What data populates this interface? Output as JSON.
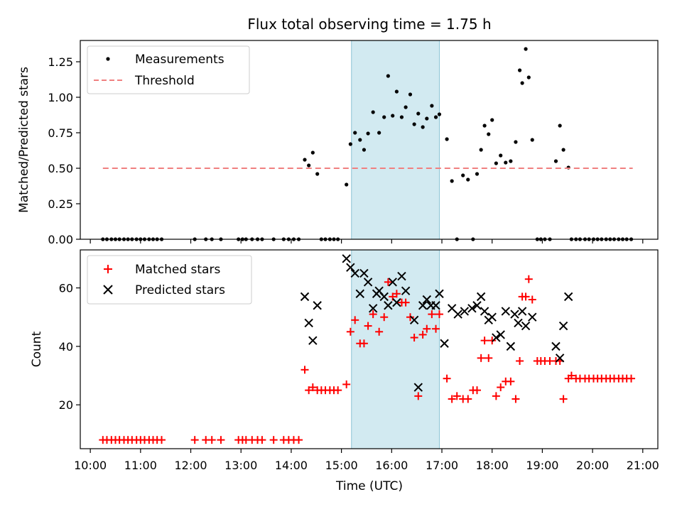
{
  "chart_data": [
    {
      "type": "scatter",
      "title": "Flux total observing time = 1.75 h",
      "xlabel": "",
      "ylabel": "Matched/Predicted stars",
      "xlim": [
        9.8,
        21.3
      ],
      "ylim": [
        0.0,
        1.4
      ],
      "yticks": [
        0.0,
        0.25,
        0.5,
        0.75,
        1.0,
        1.25
      ],
      "ytick_labels": [
        "0.00",
        "0.25",
        "0.50",
        "0.75",
        "1.00",
        "1.25"
      ],
      "highlight_span": [
        15.2,
        16.95
      ],
      "highlight_color": "#add8e6",
      "legend_position": "top-left",
      "series": [
        {
          "name": "Measurements",
          "marker": "dot",
          "color": "#000000",
          "x": [
            10.25,
            10.33,
            10.42,
            10.5,
            10.58,
            10.67,
            10.75,
            10.83,
            10.92,
            11.0,
            11.08,
            11.17,
            11.25,
            11.33,
            11.42,
            12.08,
            12.3,
            12.42,
            12.6,
            12.95,
            13.03,
            13.1,
            13.22,
            13.33,
            13.42,
            13.65,
            13.85,
            13.95,
            14.05,
            14.15,
            14.27,
            14.35,
            14.43,
            14.52,
            14.6,
            14.68,
            14.77,
            14.85,
            14.93,
            15.1,
            15.18,
            15.27,
            15.37,
            15.45,
            15.53,
            15.63,
            15.75,
            15.85,
            15.93,
            16.02,
            16.1,
            16.2,
            16.28,
            16.37,
            16.45,
            16.53,
            16.62,
            16.7,
            16.8,
            16.88,
            16.95,
            17.1,
            17.2,
            17.3,
            17.42,
            17.52,
            17.62,
            17.7,
            17.78,
            17.85,
            17.93,
            18.0,
            18.08,
            18.17,
            18.27,
            18.37,
            18.47,
            18.55,
            18.6,
            18.67,
            18.73,
            18.8,
            18.9,
            18.97,
            19.05,
            19.15,
            19.27,
            19.35,
            19.42,
            19.52,
            19.58,
            19.67,
            19.75,
            19.85,
            19.93,
            20.02,
            20.1,
            20.18,
            20.27,
            20.35,
            20.43,
            20.52,
            20.6,
            20.68,
            20.77
          ],
          "y": [
            0,
            0,
            0,
            0,
            0,
            0,
            0,
            0,
            0,
            0,
            0,
            0,
            0,
            0,
            0,
            0,
            0,
            0,
            0,
            0,
            0,
            0,
            0,
            0,
            0,
            0,
            0,
            0,
            0,
            0,
            0.56,
            0.52,
            0.61,
            0.46,
            0,
            0,
            0,
            0,
            0,
            0.385,
            0.67,
            0.75,
            0.7,
            0.63,
            0.745,
            0.895,
            0.75,
            0.86,
            1.15,
            0.87,
            1.04,
            0.86,
            0.93,
            1.02,
            0.81,
            0.885,
            0.79,
            0.85,
            0.94,
            0.86,
            0.88,
            0.705,
            0.41,
            0,
            0.45,
            0.42,
            0,
            0.46,
            0.63,
            0.8,
            0.74,
            0.84,
            0.535,
            0.59,
            0.54,
            0.55,
            0.685,
            1.19,
            1.1,
            1.34,
            1.14,
            0.7,
            0,
            0,
            0,
            0,
            0.55,
            0.8,
            0.63,
            0.505,
            0,
            0,
            0,
            0,
            0,
            0,
            0,
            0,
            0,
            0,
            0,
            0,
            0,
            0,
            0
          ]
        },
        {
          "name": "Threshold",
          "marker": "dashed-line",
          "color": "#f08080",
          "x": [
            10.25,
            20.8
          ],
          "y": [
            0.5,
            0.5
          ]
        }
      ]
    },
    {
      "type": "scatter",
      "title": "",
      "xlabel": "Time (UTC)",
      "ylabel": "Count",
      "xlim": [
        9.8,
        21.3
      ],
      "ylim": [
        5,
        73
      ],
      "yticks": [
        20,
        40,
        60
      ],
      "ytick_labels": [
        "20",
        "40",
        "60"
      ],
      "xticks": [
        10,
        11,
        12,
        13,
        14,
        15,
        16,
        17,
        18,
        19,
        20,
        21
      ],
      "xtick_labels": [
        "10:00",
        "11:00",
        "12:00",
        "13:00",
        "14:00",
        "15:00",
        "16:00",
        "17:00",
        "18:00",
        "19:00",
        "20:00",
        "21:00"
      ],
      "highlight_span": [
        15.2,
        16.95
      ],
      "highlight_color": "#add8e6",
      "legend_position": "top-left",
      "series": [
        {
          "name": "Matched stars",
          "marker": "plus",
          "color": "#ff0000",
          "x": [
            10.25,
            10.33,
            10.42,
            10.5,
            10.58,
            10.67,
            10.75,
            10.83,
            10.92,
            11.0,
            11.08,
            11.17,
            11.25,
            11.33,
            11.42,
            12.08,
            12.3,
            12.42,
            12.6,
            12.95,
            13.03,
            13.1,
            13.22,
            13.33,
            13.42,
            13.65,
            13.85,
            13.95,
            14.05,
            14.15,
            14.27,
            14.35,
            14.43,
            14.52,
            14.6,
            14.68,
            14.77,
            14.85,
            14.93,
            15.1,
            15.18,
            15.27,
            15.37,
            15.45,
            15.53,
            15.63,
            15.75,
            15.85,
            15.93,
            16.02,
            16.1,
            16.2,
            16.28,
            16.37,
            16.45,
            16.53,
            16.62,
            16.7,
            16.8,
            16.88,
            16.95,
            17.1,
            17.2,
            17.3,
            17.42,
            17.52,
            17.62,
            17.7,
            17.78,
            17.85,
            17.93,
            18.0,
            18.08,
            18.17,
            18.27,
            18.37,
            18.47,
            18.55,
            18.6,
            18.67,
            18.73,
            18.8,
            18.9,
            18.97,
            19.05,
            19.15,
            19.27,
            19.35,
            19.42,
            19.52,
            19.58,
            19.67,
            19.75,
            19.85,
            19.93,
            20.02,
            20.1,
            20.18,
            20.27,
            20.35,
            20.43,
            20.52,
            20.6,
            20.68,
            20.77
          ],
          "y": [
            8,
            8,
            8,
            8,
            8,
            8,
            8,
            8,
            8,
            8,
            8,
            8,
            8,
            8,
            8,
            8,
            8,
            8,
            8,
            8,
            8,
            8,
            8,
            8,
            8,
            8,
            8,
            8,
            8,
            8,
            32,
            25,
            26,
            25,
            25,
            25,
            25,
            25,
            25,
            27,
            45,
            49,
            41,
            41,
            47,
            51,
            45,
            50,
            62,
            57,
            58,
            55,
            55,
            50,
            43,
            23,
            44,
            46,
            51,
            46,
            51,
            29,
            22,
            23,
            22,
            22,
            25,
            25,
            36,
            42,
            36,
            42,
            23,
            26,
            28,
            28,
            22,
            35,
            57,
            57,
            63,
            56,
            35,
            35,
            35,
            35,
            35,
            35,
            22,
            29,
            30,
            29,
            29,
            29,
            29,
            29,
            29,
            29,
            29,
            29,
            29,
            29,
            29,
            29,
            29
          ]
        },
        {
          "name": "Predicted stars",
          "marker": "x",
          "color": "#000000",
          "x": [
            14.27,
            14.35,
            14.43,
            14.52,
            15.1,
            15.18,
            15.27,
            15.37,
            15.45,
            15.53,
            15.63,
            15.7,
            15.75,
            15.85,
            15.93,
            16.02,
            16.1,
            16.2,
            16.28,
            16.45,
            16.53,
            16.62,
            16.7,
            16.78,
            16.88,
            16.95,
            17.05,
            17.2,
            17.32,
            17.45,
            17.6,
            17.7,
            17.78,
            17.85,
            17.93,
            18.0,
            18.08,
            18.17,
            18.27,
            18.37,
            18.45,
            18.52,
            18.6,
            18.67,
            18.8,
            19.27,
            19.35,
            19.42,
            19.52
          ],
          "y": [
            57,
            48,
            42,
            54,
            70,
            67,
            65,
            58,
            65,
            62,
            53,
            58,
            59,
            57,
            54,
            62,
            55,
            64,
            59,
            49,
            26,
            54,
            56,
            54,
            54,
            58,
            41,
            53,
            51,
            52,
            53,
            54,
            57,
            52,
            49,
            50,
            43,
            44,
            52,
            40,
            51,
            48,
            52,
            47,
            50,
            40,
            36,
            47,
            57
          ]
        }
      ]
    }
  ]
}
